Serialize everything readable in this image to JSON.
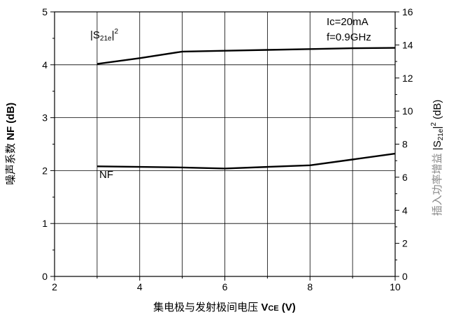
{
  "chart_data": {
    "type": "line",
    "annotations": {
      "ic": "Ic=20mA",
      "freq": "f=0.9GHz"
    },
    "x_axis": {
      "label_prefix": "集电极与发射极间电压 ",
      "label_symbol": "V",
      "label_subscript": "CE",
      "label_suffix": " (V)",
      "range": [
        2,
        10
      ],
      "ticks": [
        "2",
        "4",
        "6",
        "8",
        "10"
      ]
    },
    "y_left": {
      "label_prefix": "噪声系数 ",
      "label_bold": "NF",
      "label_suffix": " (dB)",
      "range": [
        0,
        5
      ],
      "ticks": [
        "0",
        "1",
        "2",
        "3",
        "4",
        "5"
      ]
    },
    "y_right": {
      "label_prefix": "插入功率增益 ",
      "label_s21e": "|S",
      "label_sub": "21e",
      "label_pipe": "|",
      "label_sup": "2",
      "label_suffix": " (dB)",
      "range": [
        0,
        16
      ],
      "ticks": [
        "0",
        "2",
        "4",
        "6",
        "8",
        "10",
        "12",
        "14",
        "16"
      ]
    },
    "grid": true,
    "series": [
      {
        "name": "NF",
        "axis": "left",
        "x": [
          3,
          4,
          5,
          6,
          7,
          8,
          9,
          10
        ],
        "y": [
          2.08,
          2.07,
          2.06,
          2.04,
          2.07,
          2.1,
          2.21,
          2.32
        ]
      },
      {
        "name_main": "|S",
        "name_sub": "21e",
        "name_pipe": "|",
        "name_sup": "2",
        "axis": "right",
        "x": [
          3,
          4,
          5,
          6,
          7,
          8,
          9,
          10
        ],
        "y": [
          12.85,
          13.2,
          13.6,
          13.65,
          13.7,
          13.75,
          13.8,
          13.82
        ]
      }
    ]
  }
}
